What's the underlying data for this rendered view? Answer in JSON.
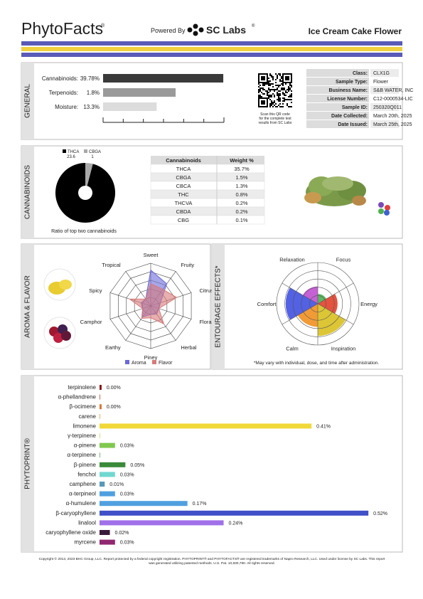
{
  "header": {
    "brand": "PhytoFacts",
    "brand_mark": "®",
    "powered_by": "Powered By",
    "lab": "SC Labs",
    "lab_mark": "®",
    "product": "Ice Cream Cake Flower"
  },
  "general": {
    "label": "GENERAL",
    "bars": [
      {
        "name": "Cannabinoids:",
        "value": 39.78,
        "value_label": "39.78%",
        "xlim": [
          0,
          40
        ],
        "color": "#3a3a3a"
      },
      {
        "name": "Terpenoids:",
        "value": 1.8,
        "value_label": "1.8%",
        "xlim": [
          0,
          3
        ],
        "color": "#9a9a9a"
      },
      {
        "name": "Moisture:",
        "value": 13.3,
        "value_label": "13.3%",
        "xlim": [
          0,
          30
        ],
        "color": "#dcdcdc"
      }
    ],
    "qr_caption": [
      "Scan this QR code",
      "for the complete test",
      "results from SC Labs"
    ],
    "info": [
      [
        "Class:",
        "CLX1G"
      ],
      [
        "Sample Type:",
        "Flower"
      ],
      [
        "Business Name:",
        "S&B WATER, INC"
      ],
      [
        "License Number:",
        "C12-0000534-LIC"
      ],
      [
        "Sample ID:",
        "250320Q011"
      ],
      [
        "Date Collected:",
        "March 20th, 2025"
      ],
      [
        "Date Issued:",
        "March 25th, 2025"
      ]
    ]
  },
  "cannabinoid_table": {
    "header": [
      "Cannabinoids",
      "Weight %"
    ],
    "rows": [
      [
        "THCA",
        "35.7%"
      ],
      [
        "CBGA",
        "1.5%"
      ],
      [
        "CBCA",
        "1.3%"
      ],
      [
        "THC",
        "0.8%"
      ],
      [
        "THCVA",
        "0.2%"
      ],
      [
        "CBDA",
        "0.2%"
      ],
      [
        "CBG",
        "0.1%"
      ]
    ]
  },
  "chart_data": [
    {
      "type": "pie",
      "title": "CANNABINOIDS",
      "categories": [
        "THCA",
        "CBGA"
      ],
      "values": [
        23.6,
        1.0
      ],
      "colors": [
        "#000000",
        "#a8a8a8"
      ],
      "caption": "Ratio of top two cannabinoids"
    },
    {
      "type": "radar",
      "title": "AROMA & FLAVOR",
      "categories": [
        "Sweet",
        "Fruity",
        "Citrusy",
        "Floral",
        "Herbal",
        "Piney",
        "Earthy",
        "Camphor",
        "Spicy",
        "Tropical"
      ],
      "rlim": [
        0,
        5
      ],
      "series": [
        {
          "name": "Aroma",
          "color": "#6a6ad8",
          "values": [
            4.2,
            3.2,
            1.2,
            1.0,
            1.2,
            1.0,
            1.6,
            1.0,
            1.2,
            1.0
          ]
        },
        {
          "name": "Flavor",
          "color": "#d87a7a",
          "values": [
            2.6,
            2.4,
            3.2,
            1.0,
            2.6,
            1.4,
            1.8,
            1.0,
            2.6,
            1.0
          ]
        }
      ]
    },
    {
      "type": "polar_area",
      "title": "ENTOURAGE EFFECTS*",
      "categories": [
        "Relaxation",
        "Focus",
        "Energy",
        "Inspiration",
        "Calm",
        "Comfort"
      ],
      "values": [
        2.1,
        1.2,
        2.4,
        3.9,
        2.8,
        3.9
      ],
      "colors": [
        "#c050d0",
        "#4caf50",
        "#e0402a",
        "#d8c020",
        "#f09020",
        "#4050e0"
      ],
      "rlim": [
        0,
        5
      ],
      "note": "*May vary with individual, dose, and time after administration."
    },
    {
      "type": "bar",
      "orientation": "horizontal",
      "title": "PHYTOPRINT®",
      "categories": [
        "terpinolene",
        "α-phellandrene",
        "β-ocimene",
        "carene",
        "limonene",
        "γ-terpinene",
        "α-pinene",
        "α-terpinene",
        "β-pinene",
        "fenchol",
        "camphene",
        "α-terpineol",
        "α-humulene",
        "β-caryophyllene",
        "linalool",
        "caryophyllene oxide",
        "myrcene"
      ],
      "values": [
        0.004,
        0,
        0.004,
        0,
        0.41,
        0,
        0.03,
        0,
        0.05,
        0.03,
        0.01,
        0.03,
        0.17,
        0.52,
        0.24,
        0.02,
        0.03
      ],
      "value_labels": [
        "0.00%",
        null,
        "0.00%",
        null,
        "0.41%",
        null,
        "0.03%",
        null,
        "0.05%",
        "0.03%",
        "0.01%",
        "0.03%",
        "0.17%",
        "0.52%",
        "0.24%",
        "0.02%",
        "0.03%"
      ],
      "colors": [
        "#8b1010",
        "#c84020",
        "#e07030",
        "#e8a030",
        "#f0d838",
        "#c8d868",
        "#80c850",
        "#58a858",
        "#3a8a3a",
        "#70d8d0",
        "#5898b8",
        "#50a0e0",
        "#50a0e0",
        "#4050c8",
        "#a070e8",
        "#3a1a3a",
        "#902870"
      ],
      "xlim": [
        0,
        0.55
      ]
    }
  ],
  "footer": [
    "Copyright © 2013, 2023 BHC Group, LLC. Report protected by a federal copyright registration. PHYTOPRINT® and PHYTOFACTS® are registered trademarks of Napro Research, LLC. Used under license by SC Labs. This report",
    "was generated utilizing patented methods. U.S. Pat. 10,830,780. All rights reserved."
  ]
}
